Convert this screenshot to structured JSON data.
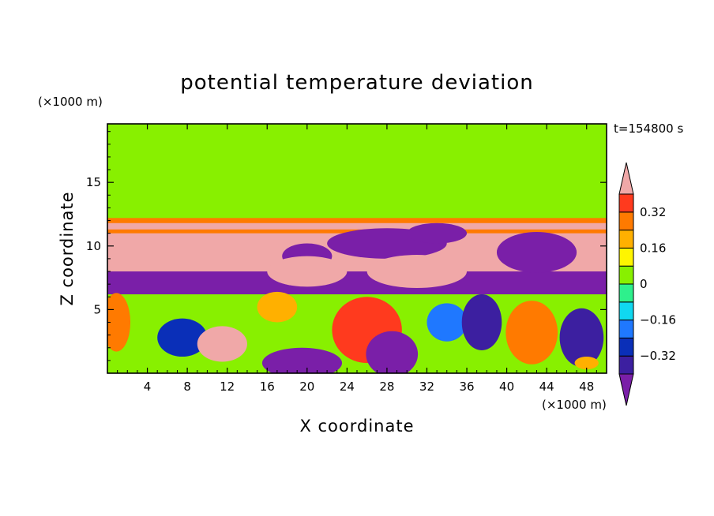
{
  "chart_data": {
    "type": "heatmap",
    "title": "potential temperature deviation",
    "xlabel": "X coordinate",
    "ylabel": "Z coordinate",
    "x_unit": "(×1000 m)",
    "y_unit": "(×1000 m)",
    "time_label": "t=154800 s",
    "xlim": [
      0,
      50
    ],
    "ylim": [
      0,
      19.6
    ],
    "x_ticks": [
      4,
      8,
      12,
      16,
      20,
      24,
      28,
      32,
      36,
      40,
      44,
      48
    ],
    "y_ticks": [
      5,
      10,
      15
    ],
    "colorbar": {
      "levels": [
        -0.48,
        -0.4,
        -0.32,
        -0.24,
        -0.16,
        -0.08,
        0,
        0.08,
        0.16,
        0.24,
        0.32,
        0.4
      ],
      "colors": [
        "#7a1fa8",
        "#3c1fa0",
        "#0a2fb8",
        "#1f78ff",
        "#10d8f0",
        "#2ef08c",
        "#88f000",
        "#fff500",
        "#ffb000",
        "#ff7a00",
        "#ff3a1e",
        "#f0a8a8"
      ],
      "tick_labels": [
        "-0.32",
        "-0.16",
        "0",
        "0.16",
        "0.32"
      ],
      "tick_values": [
        -0.32,
        -0.16,
        0,
        0.16,
        0.32
      ],
      "extend": "both"
    },
    "regions": [
      {
        "shape": "rect",
        "x": [
          0,
          50
        ],
        "z": [
          10.2,
          19.6
        ],
        "level": 0.06
      },
      {
        "shape": "rect",
        "x": [
          0,
          50
        ],
        "z": [
          16,
          19.6
        ],
        "level": 0.02
      },
      {
        "shape": "rect",
        "x": [
          0,
          50
        ],
        "z": [
          10.8,
          12.2
        ],
        "level": 0.3
      },
      {
        "shape": "rect",
        "x": [
          0,
          50
        ],
        "z": [
          11.3,
          11.8
        ],
        "level": 0.4
      },
      {
        "shape": "rect",
        "x": [
          0,
          50
        ],
        "z": [
          6.2,
          11
        ],
        "level": 0.45
      },
      {
        "shape": "rect",
        "x": [
          0,
          50
        ],
        "z": [
          5.6,
          8
        ],
        "level": -0.45
      },
      {
        "shape": "rect",
        "x": [
          0,
          50
        ],
        "z": [
          0,
          6.2
        ],
        "level": 0.04
      },
      {
        "shape": "ellipse",
        "cx": 20,
        "cz": 9.2,
        "rx": 2.5,
        "rz": 1,
        "level": -0.45
      },
      {
        "shape": "ellipse",
        "cx": 28,
        "cz": 10.2,
        "rx": 6,
        "rz": 1.2,
        "level": -0.45
      },
      {
        "shape": "ellipse",
        "cx": 33,
        "cz": 11,
        "rx": 3,
        "rz": 0.8,
        "level": -0.45
      },
      {
        "shape": "ellipse",
        "cx": 43,
        "cz": 9.5,
        "rx": 4,
        "rz": 1.6,
        "level": -0.45
      },
      {
        "shape": "ellipse",
        "cx": 20,
        "cz": 8,
        "rx": 4,
        "rz": 1.2,
        "level": 0.45
      },
      {
        "shape": "ellipse",
        "cx": 31,
        "cz": 8,
        "rx": 5,
        "rz": 1.3,
        "level": 0.45
      },
      {
        "shape": "ellipse",
        "cx": 0.9,
        "cz": 4,
        "rx": 1.4,
        "rz": 2.3,
        "level": 0.3
      },
      {
        "shape": "ellipse",
        "cx": 7.5,
        "cz": 2.8,
        "rx": 2.5,
        "rz": 1.5,
        "level": -0.3
      },
      {
        "shape": "ellipse",
        "cx": 11.5,
        "cz": 2.3,
        "rx": 2.5,
        "rz": 1.4,
        "level": 0.42
      },
      {
        "shape": "ellipse",
        "cx": 17,
        "cz": 5.2,
        "rx": 2,
        "rz": 1.2,
        "level": 0.2
      },
      {
        "shape": "ellipse",
        "cx": 19.5,
        "cz": 0.8,
        "rx": 4,
        "rz": 1.2,
        "level": -0.45
      },
      {
        "shape": "ellipse",
        "cx": 26,
        "cz": 3.4,
        "rx": 3.5,
        "rz": 2.6,
        "level": 0.35
      },
      {
        "shape": "ellipse",
        "cx": 28.5,
        "cz": 1.5,
        "rx": 2.6,
        "rz": 1.8,
        "level": -0.45
      },
      {
        "shape": "ellipse",
        "cx": 34,
        "cz": 4,
        "rx": 2,
        "rz": 1.5,
        "level": -0.2
      },
      {
        "shape": "ellipse",
        "cx": 37.5,
        "cz": 4,
        "rx": 2,
        "rz": 2.2,
        "level": -0.4
      },
      {
        "shape": "ellipse",
        "cx": 42.5,
        "cz": 3.2,
        "rx": 2.6,
        "rz": 2.5,
        "level": 0.3
      },
      {
        "shape": "ellipse",
        "cx": 47.5,
        "cz": 2.8,
        "rx": 2.2,
        "rz": 2.3,
        "level": -0.35
      },
      {
        "shape": "ellipse",
        "cx": 48,
        "cz": 0.8,
        "rx": 1.2,
        "rz": 0.5,
        "level": 0.2
      }
    ]
  }
}
